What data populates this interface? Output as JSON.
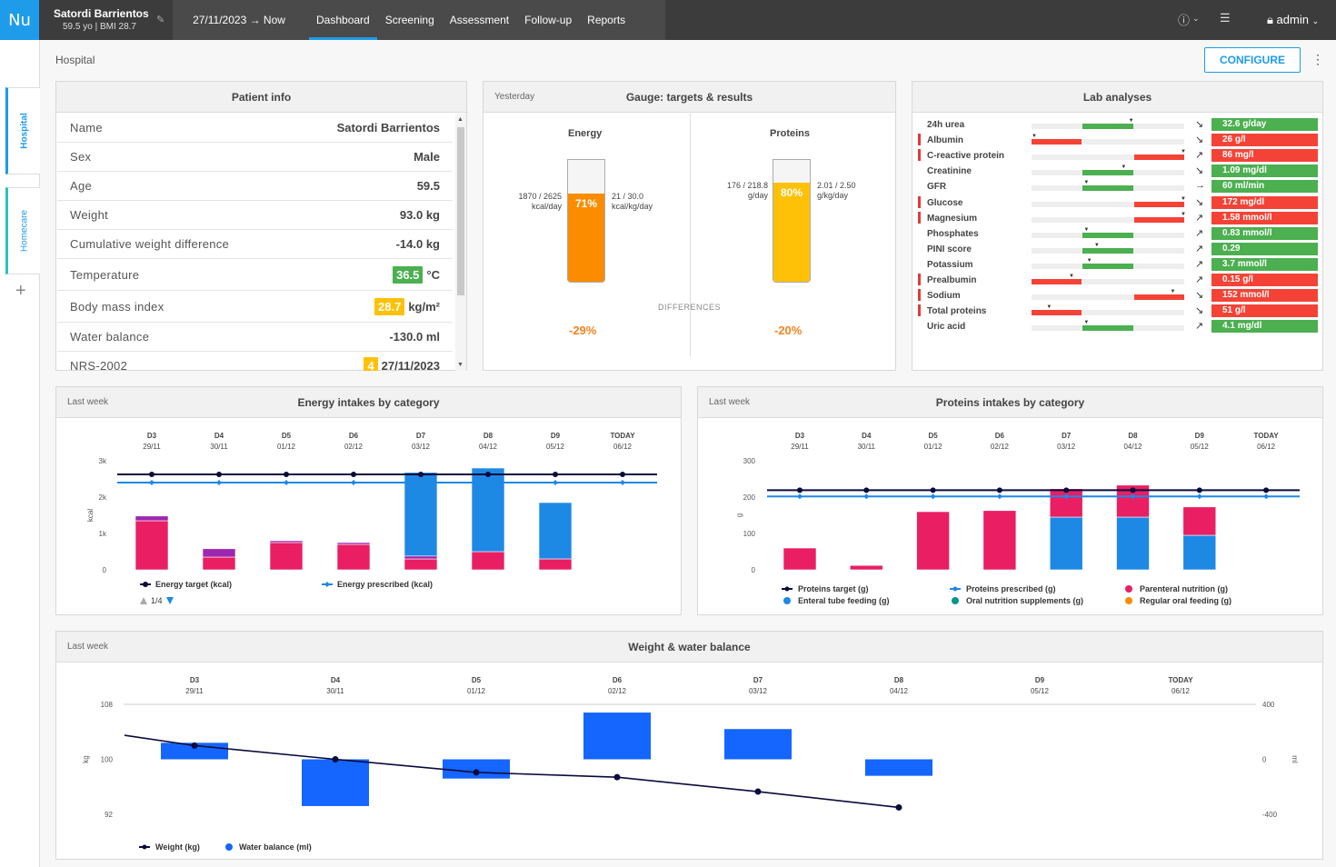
{
  "app": {
    "logo": "Nu",
    "patient_name": "Satordi Barrientos",
    "patient_sub": "59.5 yo | BMI 28.7",
    "date_range": "27/11/2023 → Now",
    "user": "admin"
  },
  "nav": [
    "Dashboard",
    "Screening",
    "Assessment",
    "Follow-up",
    "Reports"
  ],
  "sidebar": {
    "tabs": [
      "Hospital",
      "Homecare"
    ]
  },
  "breadcrumb": "Hospital",
  "configure_label": "CONFIGURE",
  "patient_info": {
    "title": "Patient info",
    "rows": [
      {
        "k": "Name",
        "v": "Satordi Barrientos"
      },
      {
        "k": "Sex",
        "v": "Male"
      },
      {
        "k": "Age",
        "v": "59.5"
      },
      {
        "k": "Weight",
        "v": "93.0 kg"
      },
      {
        "k": "Cumulative weight difference",
        "v": "-14.0 kg"
      },
      {
        "k": "Temperature",
        "pill": "36.5",
        "pillColor": "#4caf50",
        "unit": "°C"
      },
      {
        "k": "Body mass index",
        "pill": "28.7",
        "pillColor": "#ffc107",
        "unit": "kg/m²"
      },
      {
        "k": "Water balance",
        "v": "-130.0 ml"
      },
      {
        "k": "NRS-2002",
        "pill": "4",
        "pillColor": "#ffc107",
        "unit": "27/11/2023"
      }
    ]
  },
  "gauge": {
    "tag": "Yesterday",
    "title": "Gauge: targets & results",
    "differences": "DIFFERENCES",
    "energy": {
      "title": "Energy",
      "pct": "71%",
      "left": "1870 / 2625",
      "left_unit": "kcal/day",
      "right": "21 / 30.0",
      "right_unit": "kcal/kg/day",
      "diff": "-29%",
      "fill": 0.71,
      "color": "#fb8c00"
    },
    "proteins": {
      "title": "Proteins",
      "pct": "80%",
      "left": "176 / 218.8",
      "left_unit": "g/day",
      "right": "2.01 / 2.50",
      "right_unit": "g/kg/day",
      "diff": "-20%",
      "fill": 0.8,
      "color": "#ffc107"
    }
  },
  "lab": {
    "title": "Lab analyses",
    "rows": [
      {
        "name": "24h urea",
        "flag": false,
        "seg": "mid",
        "mark": 0.65,
        "arrow": "↘",
        "value": "32.6",
        "unit": "g/day",
        "color": "#4caf50"
      },
      {
        "name": "Albumin",
        "flag": true,
        "seg": "low",
        "mark": 0.0,
        "arrow": "↘",
        "value": "26",
        "unit": "g/l",
        "color": "#f44336"
      },
      {
        "name": "C-reactive protein",
        "flag": true,
        "seg": "high",
        "mark": 1.0,
        "arrow": "↗",
        "value": "86",
        "unit": "mg/l",
        "color": "#f44336"
      },
      {
        "name": "Creatinine",
        "flag": false,
        "seg": "mid",
        "mark": 0.6,
        "arrow": "↘",
        "value": "1.09",
        "unit": "mg/dl",
        "color": "#4caf50"
      },
      {
        "name": "GFR",
        "flag": false,
        "seg": "mid",
        "mark": 0.35,
        "arrow": "→",
        "value": "60",
        "unit": "ml/min",
        "color": "#4caf50"
      },
      {
        "name": "Glucose",
        "flag": true,
        "seg": "high",
        "mark": 1.0,
        "arrow": "↘",
        "value": "172",
        "unit": "mg/dl",
        "color": "#f44336"
      },
      {
        "name": "Magnesium",
        "flag": true,
        "seg": "high",
        "mark": 1.0,
        "arrow": "↗",
        "value": "1.58",
        "unit": "mmol/l",
        "color": "#f44336"
      },
      {
        "name": "Phosphates",
        "flag": false,
        "seg": "mid",
        "mark": 0.35,
        "arrow": "↗",
        "value": "0.83",
        "unit": "mmol/l",
        "color": "#4caf50"
      },
      {
        "name": "PINI score",
        "flag": false,
        "seg": "mid",
        "mark": 0.42,
        "arrow": "↗",
        "value": "0.29",
        "unit": "",
        "color": "#4caf50"
      },
      {
        "name": "Potassium",
        "flag": false,
        "seg": "mid",
        "mark": 0.37,
        "arrow": "↗",
        "value": "3.7",
        "unit": "mmol/l",
        "color": "#4caf50"
      },
      {
        "name": "Prealbumin",
        "flag": true,
        "seg": "low",
        "mark": 0.25,
        "arrow": "↗",
        "value": "0.15",
        "unit": "g/l",
        "color": "#f44336"
      },
      {
        "name": "Sodium",
        "flag": true,
        "seg": "high",
        "mark": 0.93,
        "arrow": "↘",
        "value": "152",
        "unit": "mmol/l",
        "color": "#f44336"
      },
      {
        "name": "Total proteins",
        "flag": true,
        "seg": "low",
        "mark": 0.1,
        "arrow": "↘",
        "value": "51",
        "unit": "g/l",
        "color": "#f44336"
      },
      {
        "name": "Uric acid",
        "flag": false,
        "seg": "mid",
        "mark": 0.35,
        "arrow": "↗",
        "value": "4.1",
        "unit": "mg/dl",
        "color": "#4caf50"
      }
    ]
  },
  "chart_data": [
    {
      "id": "energy",
      "type": "bar",
      "tag": "Last week",
      "title": "Energy intakes by category",
      "days": [
        "D3",
        "D4",
        "D5",
        "D6",
        "D7",
        "D8",
        "D9",
        "TODAY"
      ],
      "dates": [
        "29/11",
        "30/11",
        "01/12",
        "02/12",
        "03/12",
        "04/12",
        "05/12",
        "06/12"
      ],
      "ylabel": "kcal",
      "yticks": [
        "0",
        "1k",
        "2k",
        "3k"
      ],
      "ylim": [
        0,
        3000
      ],
      "stacks": [
        {
          "name": "Parenteral nutrition",
          "color": "#e91e63",
          "values": [
            1350,
            350,
            750,
            700,
            300,
            500,
            300,
            null
          ]
        },
        {
          "name": "Oral nutrition supplements",
          "color": "#9c27b0",
          "values": [
            130,
            230,
            50,
            50,
            80,
            null,
            null,
            null
          ]
        },
        {
          "name": "Enteral tube feeding",
          "color": "#1e88e5",
          "values": [
            null,
            null,
            null,
            null,
            2300,
            2300,
            1550,
            null
          ]
        }
      ],
      "lines": [
        {
          "name": "Energy target (kcal)",
          "color": "#0a0a3c",
          "value": 2625
        },
        {
          "name": "Energy prescribed (kcal)",
          "color": "#1e88e5",
          "value": 2400
        }
      ],
      "pager": "1/4"
    },
    {
      "id": "proteins",
      "type": "bar",
      "tag": "Last week",
      "title": "Proteins intakes by category",
      "days": [
        "D3",
        "D4",
        "D5",
        "D6",
        "D7",
        "D8",
        "D9",
        "TODAY"
      ],
      "dates": [
        "29/11",
        "30/11",
        "01/12",
        "02/12",
        "03/12",
        "04/12",
        "05/12",
        "06/12"
      ],
      "ylabel": "g",
      "yticks": [
        "0",
        "100",
        "200",
        "300"
      ],
      "ylim": [
        0,
        300
      ],
      "stacks": [
        {
          "name": "Enteral tube feeding (g)",
          "color": "#1e88e5",
          "values": [
            null,
            null,
            null,
            null,
            145,
            145,
            95,
            null
          ]
        },
        {
          "name": "Parenteral nutrition (g)",
          "color": "#e91e63",
          "values": [
            60,
            12,
            160,
            163,
            78,
            88,
            78,
            null
          ]
        }
      ],
      "lines": [
        {
          "name": "Proteins target (g)",
          "color": "#0a0a3c",
          "value": 219
        },
        {
          "name": "Proteins prescribed (g)",
          "color": "#1e88e5",
          "value": 202
        }
      ],
      "legend": [
        "Proteins target (g)",
        "Proteins prescribed (g)",
        "Parenteral nutrition (g)",
        "Enteral tube feeding (g)",
        "Oral nutrition supplements (g)",
        "Regular oral feeding (g)"
      ],
      "legend_colors": [
        "#0a0a3c",
        "#1e88e5",
        "#e91e63",
        "#1e88e5",
        "#009688",
        "#fb8c00"
      ]
    },
    {
      "id": "weight",
      "type": "bar",
      "tag": "Last week",
      "title": "Weight & water balance",
      "days": [
        "D3",
        "D4",
        "D5",
        "D6",
        "D7",
        "D8",
        "D9",
        "TODAY"
      ],
      "dates": [
        "29/11",
        "30/11",
        "01/12",
        "02/12",
        "03/12",
        "04/12",
        "05/12",
        "06/12"
      ],
      "ylabel_left": "kg",
      "ylabel_right": "ml",
      "yticks_left": [
        "92",
        "100",
        "108"
      ],
      "yticks_right": [
        "-400",
        "0",
        "400"
      ],
      "ylim_left": [
        92,
        108
      ],
      "ylim_right": [
        -400,
        400
      ],
      "water": {
        "name": "Water balance (ml)",
        "color": "#1565ff",
        "values": [
          120,
          -340,
          -140,
          340,
          220,
          -120,
          null,
          null
        ]
      },
      "weight": {
        "name": "Weight (kg)",
        "color": "#0a0a3c",
        "values": [
          102,
          100,
          98.1,
          97.4,
          95.3,
          93.0,
          null,
          null
        ],
        "start": 103.5
      }
    }
  ]
}
